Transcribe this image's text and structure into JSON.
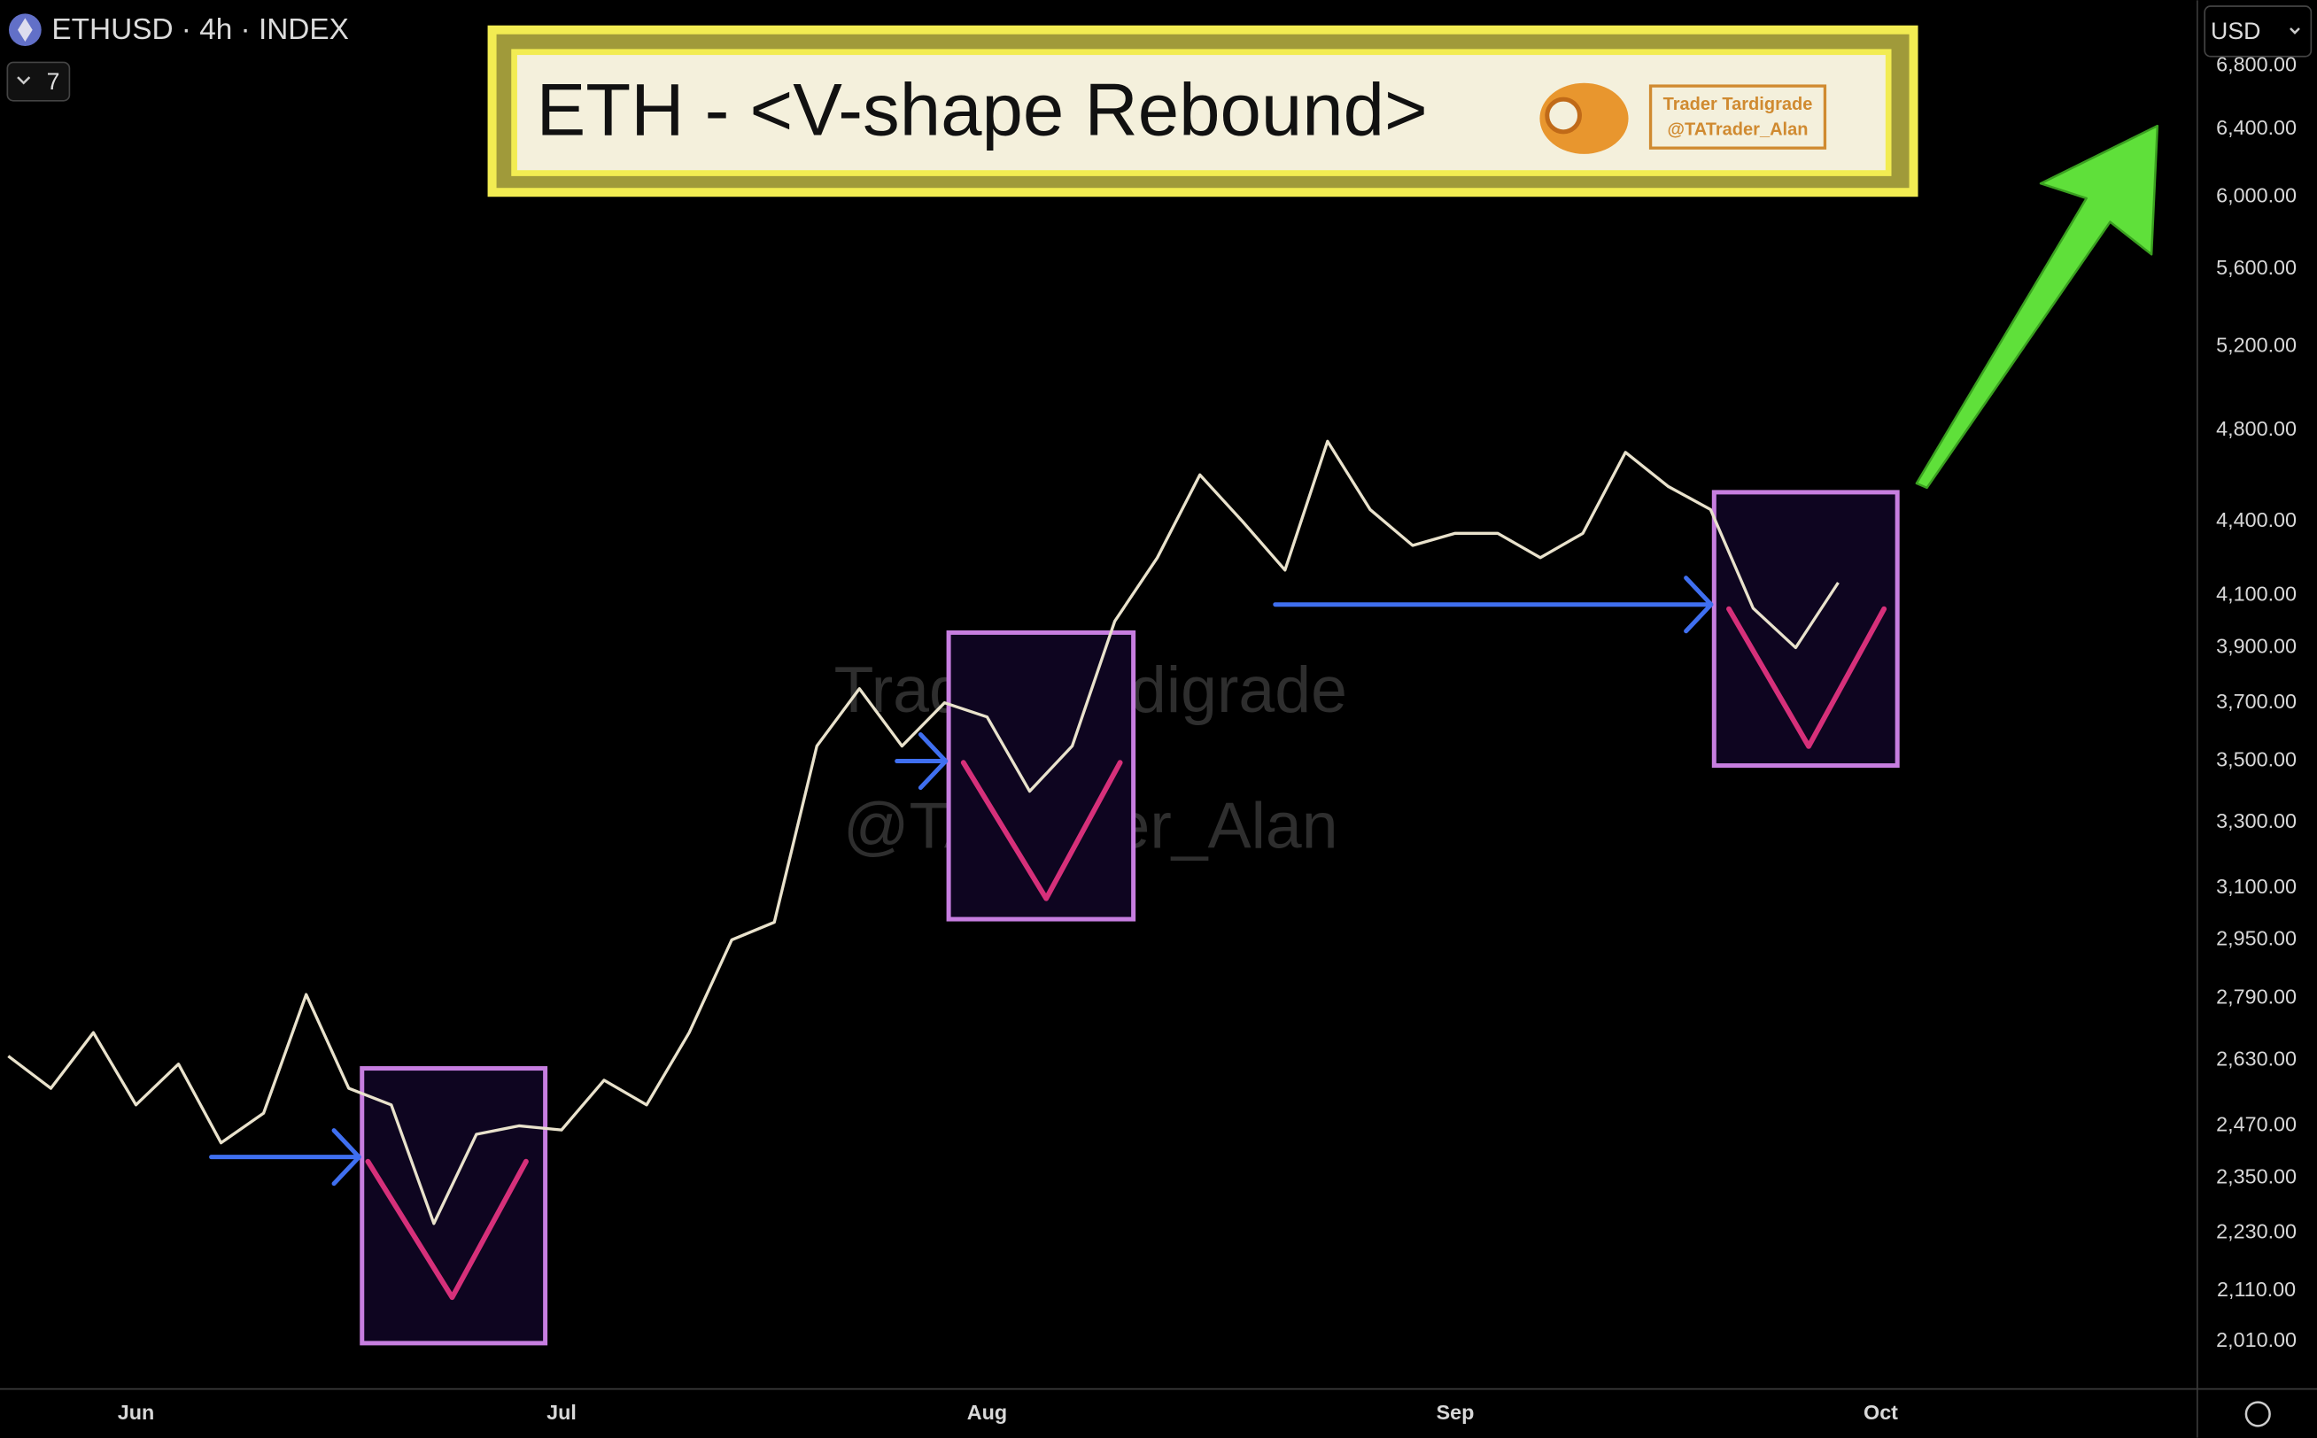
{
  "chart_data": {
    "type": "line",
    "symbol": "ETHUSD · 4h · INDEX",
    "indicator_count": 7,
    "title": "ETH - <V-shape Rebound>",
    "badge": [
      "Trader Tardigrade",
      "@TATrader_Alan"
    ],
    "watermark": [
      "Trader Tardigrade",
      "@TATrader_Alan"
    ],
    "currency": "USD",
    "color": "#e9e2cc",
    "log_scale": true,
    "grid": false,
    "categories": [
      null,
      null,
      null,
      "Jun",
      null,
      null,
      null,
      null,
      null,
      null,
      null,
      null,
      null,
      "Jul",
      null,
      null,
      null,
      null,
      null,
      null,
      null,
      null,
      null,
      "Aug",
      null,
      null,
      null,
      null,
      null,
      null,
      null,
      null,
      null,
      null,
      "Sep",
      null,
      null,
      null,
      null,
      null,
      null,
      null,
      null,
      null,
      "Oct"
    ],
    "values": [
      2640,
      2560,
      2700,
      2520,
      2620,
      2430,
      2500,
      2800,
      2560,
      2520,
      2250,
      2450,
      2470,
      2460,
      2580,
      2520,
      2700,
      2950,
      3000,
      3550,
      3750,
      3550,
      3700,
      3650,
      3400,
      3550,
      4000,
      4250,
      4600,
      4400,
      4200,
      4750,
      4450,
      4300,
      4350,
      4350,
      4250,
      4350,
      4700,
      4550,
      4450,
      4050,
      3900,
      4150,
      null
    ],
    "ylim": [
      1921,
      7238
    ],
    "yticks": [
      {
        "value": 6800,
        "label": "6,800.00"
      },
      {
        "value": 6400,
        "label": "6,400.00"
      },
      {
        "value": 6000,
        "label": "6,000.00"
      },
      {
        "value": 5600,
        "label": "5,600.00"
      },
      {
        "value": 5200,
        "label": "5,200.00"
      },
      {
        "value": 4800,
        "label": "4,800.00"
      },
      {
        "value": 4400,
        "label": "4,400.00"
      },
      {
        "value": 4100,
        "label": "4,100.00"
      },
      {
        "value": 3900,
        "label": "3,900.00"
      },
      {
        "value": 3700,
        "label": "3,700.00"
      },
      {
        "value": 3500,
        "label": "3,500.00"
      },
      {
        "value": 3300,
        "label": "3,300.00"
      },
      {
        "value": 3100,
        "label": "3,100.00"
      },
      {
        "value": 2950,
        "label": "2,950.00"
      },
      {
        "value": 2790,
        "label": "2,790.00"
      },
      {
        "value": 2630,
        "label": "2,630.00"
      },
      {
        "value": 2470,
        "label": "2,470.00"
      },
      {
        "value": 2350,
        "label": "2,350.00"
      },
      {
        "value": 2230,
        "label": "2,230.00"
      },
      {
        "value": 2110,
        "label": "2,110.00"
      },
      {
        "value": 2010,
        "label": "2,010.00"
      }
    ]
  }
}
